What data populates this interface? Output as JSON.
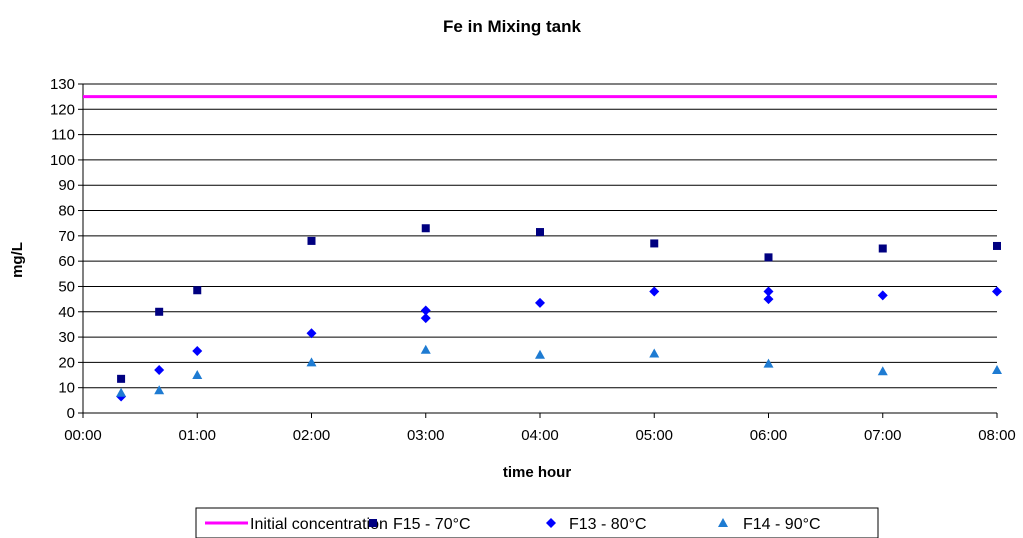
{
  "chart_data": {
    "type": "scatter",
    "title": "Fe in Mixing tank",
    "xlabel": "time hour",
    "ylabel": "mg/L",
    "xlim_hours": [
      0,
      8
    ],
    "ylim": [
      0,
      130
    ],
    "y_ticks": [
      0,
      10,
      20,
      30,
      40,
      50,
      60,
      70,
      80,
      90,
      100,
      110,
      120,
      130
    ],
    "x_ticks": [
      "00:00",
      "01:00",
      "02:00",
      "03:00",
      "04:00",
      "05:00",
      "06:00",
      "07:00",
      "08:00"
    ],
    "grid": "horizontal",
    "legend_position": "bottom",
    "series": [
      {
        "name": "Initial concentration",
        "kind": "line",
        "color": "#ff00ff",
        "x": [
          "00:00",
          "08:00"
        ],
        "y": [
          125,
          125
        ]
      },
      {
        "name": "F15 - 70°C",
        "kind": "marker",
        "marker": "square",
        "color": "#000080",
        "x": [
          "00:20",
          "00:40",
          "01:00",
          "02:00",
          "03:00",
          "04:00",
          "05:00",
          "06:00",
          "07:00",
          "08:00"
        ],
        "y": [
          13.5,
          40,
          48.5,
          68,
          73,
          71.5,
          67,
          61.5,
          65,
          66
        ]
      },
      {
        "name": "F13 - 80°C",
        "kind": "marker",
        "marker": "diamond",
        "color": "#0000ff",
        "x": [
          "00:20",
          "00:40",
          "01:00",
          "02:00",
          "03:00",
          "03:00",
          "04:00",
          "05:00",
          "06:00",
          "06:00",
          "07:00",
          "08:00"
        ],
        "y": [
          6.5,
          17,
          24.5,
          31.5,
          37.5,
          40.5,
          43.5,
          48,
          45,
          48,
          46.5,
          48
        ]
      },
      {
        "name": "F14 - 90°C",
        "kind": "marker",
        "marker": "triangle",
        "color": "#1e7bd2",
        "x": [
          "00:20",
          "00:40",
          "01:00",
          "02:00",
          "03:00",
          "04:00",
          "05:00",
          "06:00",
          "07:00",
          "08:00"
        ],
        "y": [
          8,
          9,
          15,
          20,
          25,
          23,
          23.5,
          19.5,
          16.5,
          17
        ]
      }
    ]
  }
}
